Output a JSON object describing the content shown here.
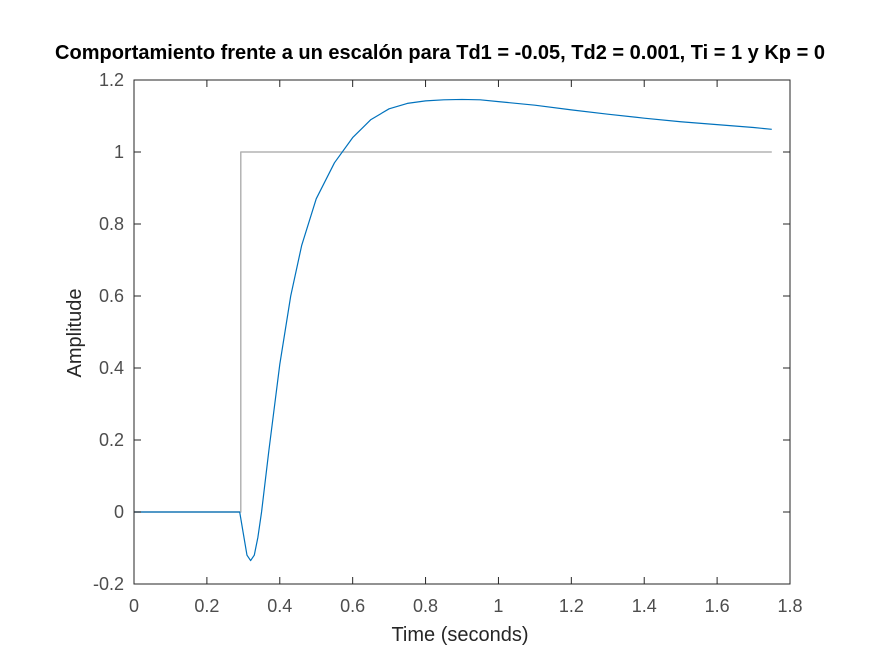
{
  "chart_data": {
    "type": "line",
    "title": "Comportamiento frente a un escalón para Td1 = -0.05, Td2 = 0.001, Ti = 1 y Kp = 0",
    "xlabel": "Time (seconds)",
    "ylabel": "Amplitude",
    "xlim": [
      0,
      1.8
    ],
    "ylim": [
      -0.2,
      1.2
    ],
    "xticks": [
      0,
      0.2,
      0.4,
      0.6,
      0.8,
      1,
      1.2,
      1.4,
      1.6,
      1.8
    ],
    "xtick_labels": [
      "0",
      "0.2",
      "0.4",
      "0.6",
      "0.8",
      "1",
      "1.2",
      "1.4",
      "1.6",
      "1.8"
    ],
    "yticks": [
      -0.2,
      0,
      0.2,
      0.4,
      0.6,
      0.8,
      1,
      1.2
    ],
    "ytick_labels": [
      "-0.2",
      "0",
      "0.2",
      "0.4",
      "0.6",
      "0.8",
      "1",
      "1.2"
    ],
    "grid": false,
    "legend": "none",
    "series": [
      {
        "color": "#0072bd",
        "x": [
          0,
          0.29,
          0.3,
          0.31,
          0.32,
          0.33,
          0.34,
          0.35,
          0.37,
          0.4,
          0.43,
          0.46,
          0.5,
          0.55,
          0.6,
          0.65,
          0.7,
          0.75,
          0.8,
          0.85,
          0.9,
          0.95,
          1.0,
          1.1,
          1.2,
          1.3,
          1.4,
          1.5,
          1.6,
          1.7,
          1.75
        ],
        "y": [
          0,
          0,
          -0.06,
          -0.12,
          -0.135,
          -0.12,
          -0.07,
          0.0,
          0.17,
          0.41,
          0.6,
          0.74,
          0.87,
          0.97,
          1.04,
          1.09,
          1.12,
          1.135,
          1.142,
          1.145,
          1.146,
          1.145,
          1.14,
          1.13,
          1.117,
          1.105,
          1.094,
          1.084,
          1.076,
          1.068,
          1.063
        ]
      },
      {
        "color": "#b3b3b3",
        "x": [
          0,
          0.293,
          0.293,
          1.75
        ],
        "y": [
          0,
          0,
          1,
          1
        ]
      }
    ]
  }
}
